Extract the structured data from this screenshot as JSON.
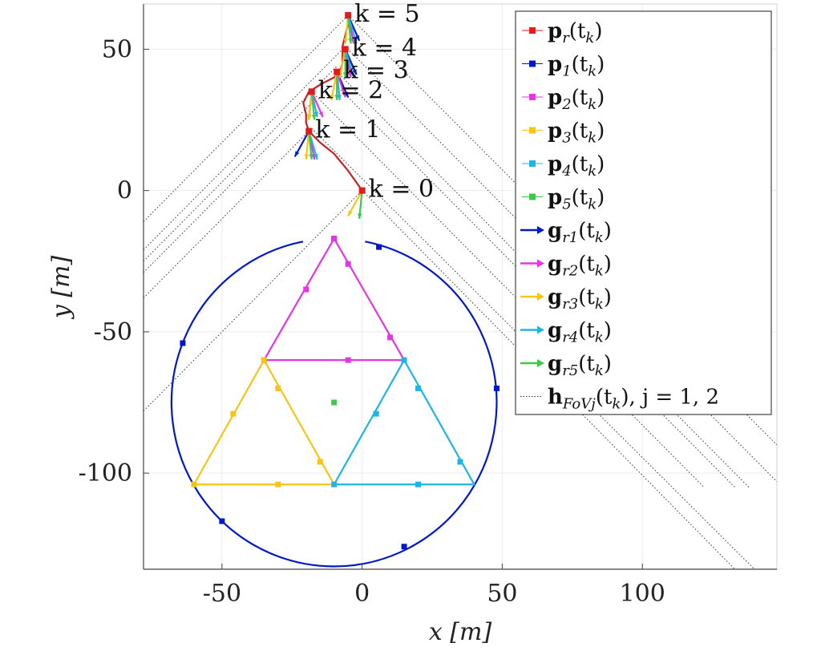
{
  "chart_data": {
    "type": "line",
    "xlabel": "x [m]",
    "ylabel": "y [m]",
    "xlim": [
      -78,
      148
    ],
    "ylim": [
      -134,
      66
    ],
    "grid": true,
    "legend_position": "top-right",
    "x_ticks": [
      {
        "value": -50,
        "label": "-50"
      },
      {
        "value": 0,
        "label": "0"
      },
      {
        "value": 50,
        "label": "50"
      },
      {
        "value": 100,
        "label": "100"
      }
    ],
    "y_ticks": [
      {
        "value": 50,
        "label": "50"
      },
      {
        "value": 0,
        "label": "0"
      },
      {
        "value": -50,
        "label": "-50"
      },
      {
        "value": -100,
        "label": "-100"
      }
    ],
    "legend": [
      {
        "label": "p_r(t_k)",
        "main": "p",
        "sub": "r",
        "args": "(t",
        "argsub": "k",
        "tail": ")",
        "color": "#e41a1c",
        "kind": "square"
      },
      {
        "label": "p_1(t_k)",
        "main": "p",
        "sub": "1",
        "args": "(t",
        "argsub": "k",
        "tail": ")",
        "color": "#0018c8",
        "kind": "square"
      },
      {
        "label": "p_2(t_k)",
        "main": "p",
        "sub": "2",
        "args": "(t",
        "argsub": "k",
        "tail": ")",
        "color": "#e535e5",
        "kind": "square"
      },
      {
        "label": "p_3(t_k)",
        "main": "p",
        "sub": "3",
        "args": "(t",
        "argsub": "k",
        "tail": ")",
        "color": "#f5c518",
        "kind": "square"
      },
      {
        "label": "p_4(t_k)",
        "main": "p",
        "sub": "4",
        "args": "(t",
        "argsub": "k",
        "tail": ")",
        "color": "#1fb4e6",
        "kind": "square"
      },
      {
        "label": "p_5(t_k)",
        "main": "p",
        "sub": "5",
        "args": "(t",
        "argsub": "k",
        "tail": ")",
        "color": "#3cc84a",
        "kind": "square"
      },
      {
        "label": "g_r1(t_k)",
        "main": "g",
        "sub": "r1",
        "args": "(t",
        "argsub": "k",
        "tail": ")",
        "color": "#0018c8",
        "kind": "arrow"
      },
      {
        "label": "g_r2(t_k)",
        "main": "g",
        "sub": "r2",
        "args": "(t",
        "argsub": "k",
        "tail": ")",
        "color": "#e535e5",
        "kind": "arrow"
      },
      {
        "label": "g_r3(t_k)",
        "main": "g",
        "sub": "r3",
        "args": "(t",
        "argsub": "k",
        "tail": ")",
        "color": "#f5c518",
        "kind": "arrow"
      },
      {
        "label": "g_r4(t_k)",
        "main": "g",
        "sub": "r4",
        "args": "(t",
        "argsub": "k",
        "tail": ")",
        "color": "#1fb4e6",
        "kind": "arrow"
      },
      {
        "label": "g_r5(t_k)",
        "main": "g",
        "sub": "r5",
        "args": "(t",
        "argsub": "k",
        "tail": ")",
        "color": "#3cc84a",
        "kind": "arrow"
      },
      {
        "label": "h_FoVj(t_k), j = 1,2",
        "main": "h",
        "sub": "FoVj",
        "args": "(t",
        "argsub": "k",
        "tail": "),  j = 1, 2",
        "color": "#333333",
        "kind": "dotted"
      }
    ],
    "target_circle": {
      "center": [
        -10,
        -75
      ],
      "radius": 58,
      "color": "#0018c8"
    },
    "triangles": [
      {
        "name": "p2",
        "color": "#e535e5",
        "points": [
          [
            -10,
            -17
          ],
          [
            15,
            -60
          ],
          [
            -35,
            -60
          ]
        ]
      },
      {
        "name": "p3",
        "color": "#f5c518",
        "points": [
          [
            -35,
            -60
          ],
          [
            -10,
            -104
          ],
          [
            -60,
            -104
          ]
        ]
      },
      {
        "name": "p4",
        "color": "#1fb4e6",
        "points": [
          [
            15,
            -60
          ],
          [
            40,
            -104
          ],
          [
            -10,
            -104
          ]
        ]
      }
    ],
    "agent_markers": [
      {
        "series": "p1",
        "color": "#0018c8",
        "points": [
          [
            -10,
            -17
          ],
          [
            6,
            -20
          ],
          [
            48,
            -70
          ],
          [
            15,
            -126
          ],
          [
            -50,
            -117
          ],
          [
            -64,
            -54
          ]
        ]
      },
      {
        "series": "p2",
        "color": "#e535e5",
        "points": [
          [
            -10,
            -17
          ],
          [
            -5,
            -26
          ],
          [
            -20,
            -35
          ],
          [
            10,
            -52
          ],
          [
            -35,
            -60
          ],
          [
            -5,
            -60
          ]
        ]
      },
      {
        "series": "p3",
        "color": "#f5c518",
        "points": [
          [
            -35,
            -60
          ],
          [
            -30,
            -70
          ],
          [
            -46,
            -79
          ],
          [
            -15,
            -96
          ],
          [
            -60,
            -104
          ],
          [
            -30,
            -104
          ]
        ]
      },
      {
        "series": "p4",
        "color": "#1fb4e6",
        "points": [
          [
            15,
            -60
          ],
          [
            20,
            -70
          ],
          [
            5,
            -79
          ],
          [
            35,
            -96
          ],
          [
            -10,
            -104
          ],
          [
            20,
            -104
          ]
        ]
      },
      {
        "series": "p5",
        "color": "#3cc84a",
        "points": [
          [
            -10,
            -75
          ]
        ]
      }
    ],
    "reference_path": {
      "color": "#cc1f1f",
      "points": [
        [
          0,
          0
        ],
        [
          -5,
          7
        ],
        [
          -10,
          13
        ],
        [
          -15,
          17
        ],
        [
          -19,
          21
        ],
        [
          -20,
          24
        ],
        [
          -20,
          27
        ],
        [
          -21,
          31
        ],
        [
          -19,
          35
        ],
        [
          -14,
          38
        ],
        [
          -10,
          40
        ],
        [
          -8,
          42
        ],
        [
          -7,
          45
        ],
        [
          -7,
          48
        ],
        [
          -7,
          51
        ],
        [
          -6,
          55
        ],
        [
          -5,
          59
        ],
        [
          -5,
          62
        ]
      ]
    },
    "robot_positions": [
      {
        "k": 0,
        "label": "k = 0",
        "x": 0,
        "y": 0
      },
      {
        "k": 1,
        "label": "k = 1",
        "x": -19,
        "y": 21
      },
      {
        "k": 2,
        "label": "k = 2",
        "x": -18,
        "y": 35
      },
      {
        "k": 3,
        "label": "k = 3",
        "x": -9,
        "y": 42
      },
      {
        "k": 4,
        "label": "k = 4",
        "x": -6,
        "y": 50
      },
      {
        "k": 5,
        "label": "k = 5",
        "x": -5,
        "y": 62
      }
    ],
    "bearing_arrows": [
      {
        "k": 0,
        "color": "#f5c518",
        "from": [
          0,
          0
        ],
        "to": [
          -5,
          -9
        ]
      },
      {
        "k": 0,
        "color": "#3cc84a",
        "from": [
          0,
          0
        ],
        "to": [
          -1,
          -10
        ]
      },
      {
        "k": 1,
        "color": "#0018c8",
        "from": [
          -19,
          21
        ],
        "to": [
          -24,
          12
        ]
      },
      {
        "k": 1,
        "color": "#e535e5",
        "from": [
          -19,
          21
        ],
        "to": [
          -17,
          11
        ]
      },
      {
        "k": 1,
        "color": "#f5c518",
        "from": [
          -19,
          21
        ],
        "to": [
          -20,
          11
        ]
      },
      {
        "k": 1,
        "color": "#1fb4e6",
        "from": [
          -19,
          21
        ],
        "to": [
          -16,
          11
        ]
      },
      {
        "k": 1,
        "color": "#3cc84a",
        "from": [
          -19,
          21
        ],
        "to": [
          -18,
          11
        ]
      },
      {
        "k": 2,
        "color": "#0018c8",
        "from": [
          -18,
          35
        ],
        "to": [
          -19,
          25
        ]
      },
      {
        "k": 2,
        "color": "#e535e5",
        "from": [
          -18,
          35
        ],
        "to": [
          -14,
          26
        ]
      },
      {
        "k": 2,
        "color": "#f5c518",
        "from": [
          -18,
          35
        ],
        "to": [
          -19,
          25
        ]
      },
      {
        "k": 2,
        "color": "#1fb4e6",
        "from": [
          -18,
          35
        ],
        "to": [
          -16,
          26
        ]
      },
      {
        "k": 2,
        "color": "#3cc84a",
        "from": [
          -18,
          35
        ],
        "to": [
          -17,
          25
        ]
      },
      {
        "k": 3,
        "color": "#0018c8",
        "from": [
          -9,
          42
        ],
        "to": [
          -5,
          33
        ]
      },
      {
        "k": 3,
        "color": "#e535e5",
        "from": [
          -9,
          42
        ],
        "to": [
          -6,
          33
        ]
      },
      {
        "k": 3,
        "color": "#f5c518",
        "from": [
          -9,
          42
        ],
        "to": [
          -11,
          32
        ]
      },
      {
        "k": 3,
        "color": "#1fb4e6",
        "from": [
          -9,
          42
        ],
        "to": [
          -8,
          32
        ]
      },
      {
        "k": 3,
        "color": "#3cc84a",
        "from": [
          -9,
          42
        ],
        "to": [
          -9,
          32
        ]
      },
      {
        "k": 4,
        "color": "#0018c8",
        "from": [
          -6,
          50
        ],
        "to": [
          -2,
          41
        ]
      },
      {
        "k": 4,
        "color": "#e535e5",
        "from": [
          -6,
          50
        ],
        "to": [
          -4,
          40
        ]
      },
      {
        "k": 4,
        "color": "#f5c518",
        "from": [
          -6,
          50
        ],
        "to": [
          -8,
          40
        ]
      },
      {
        "k": 4,
        "color": "#1fb4e6",
        "from": [
          -6,
          50
        ],
        "to": [
          -3,
          40
        ]
      },
      {
        "k": 4,
        "color": "#3cc84a",
        "from": [
          -6,
          50
        ],
        "to": [
          -6,
          40
        ]
      },
      {
        "k": 5,
        "color": "#0018c8",
        "from": [
          -5,
          62
        ],
        "to": [
          -1,
          53
        ]
      },
      {
        "k": 5,
        "color": "#e535e5",
        "from": [
          -5,
          62
        ],
        "to": [
          -3,
          52
        ]
      },
      {
        "k": 5,
        "color": "#f5c518",
        "from": [
          -5,
          62
        ],
        "to": [
          -6,
          52
        ]
      },
      {
        "k": 5,
        "color": "#1fb4e6",
        "from": [
          -5,
          62
        ],
        "to": [
          -2,
          52
        ]
      },
      {
        "k": 5,
        "color": "#3cc84a",
        "from": [
          -5,
          62
        ],
        "to": [
          -4,
          52
        ]
      }
    ],
    "fov_lines": [
      {
        "from": [
          -78,
          -11
        ],
        "to": [
          -5,
          62
        ]
      },
      {
        "from": [
          -78,
          -21
        ],
        "to": [
          -6,
          51
        ]
      },
      {
        "from": [
          -78,
          -25
        ],
        "to": [
          -9,
          44
        ]
      },
      {
        "from": [
          -78,
          -29
        ],
        "to": [
          -18,
          31
        ]
      },
      {
        "from": [
          -78,
          -38
        ],
        "to": [
          -18,
          22
        ]
      },
      {
        "from": [
          -78,
          -78
        ],
        "to": [
          0,
          0
        ]
      },
      {
        "from": [
          -5,
          62
        ],
        "to": [
          148,
          -90
        ]
      },
      {
        "from": [
          -6,
          51
        ],
        "to": [
          148,
          -103
        ]
      },
      {
        "from": [
          -9,
          42
        ],
        "to": [
          138,
          -105
        ]
      },
      {
        "from": [
          -10,
          38
        ],
        "to": [
          133,
          -105
        ]
      },
      {
        "from": [
          -18,
          35
        ],
        "to": [
          122,
          -105
        ]
      },
      {
        "from": [
          0,
          0
        ],
        "to": [
          133,
          -134
        ]
      },
      {
        "from": [
          -18,
          22
        ],
        "to": [
          140,
          -134
        ]
      }
    ]
  }
}
